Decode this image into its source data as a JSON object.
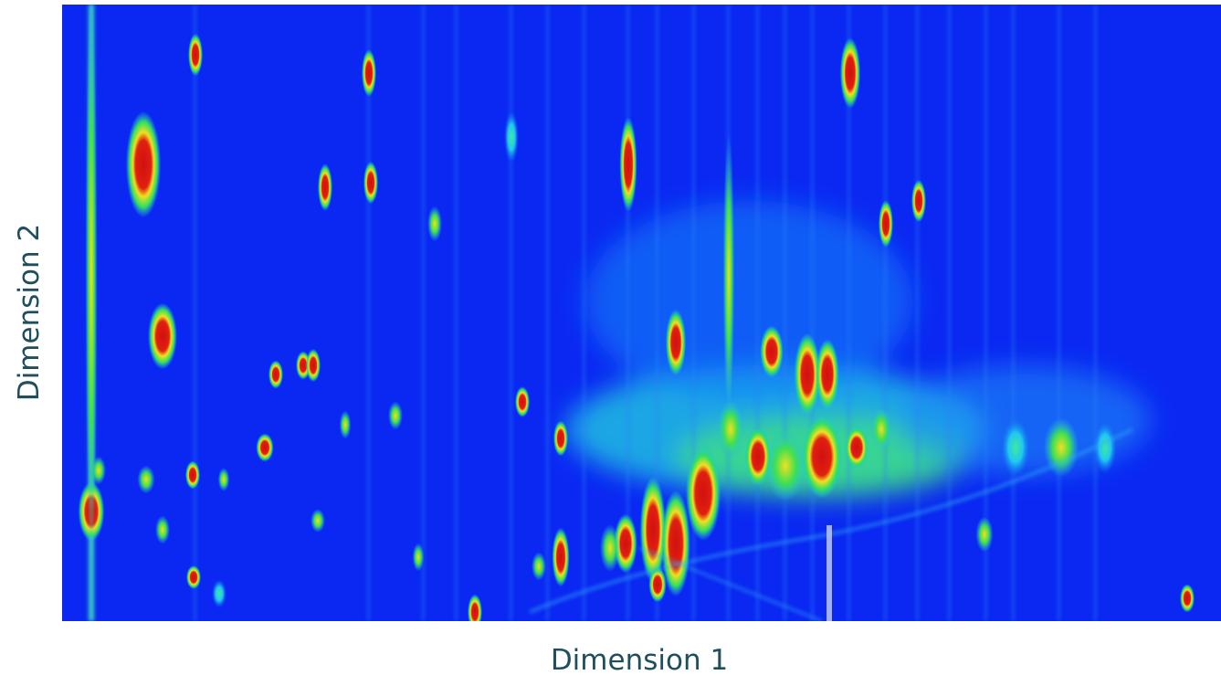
{
  "chart_data": {
    "type": "heatmap",
    "x_label": "Dimension 1",
    "y_label": "Dimension 2"
  }
}
